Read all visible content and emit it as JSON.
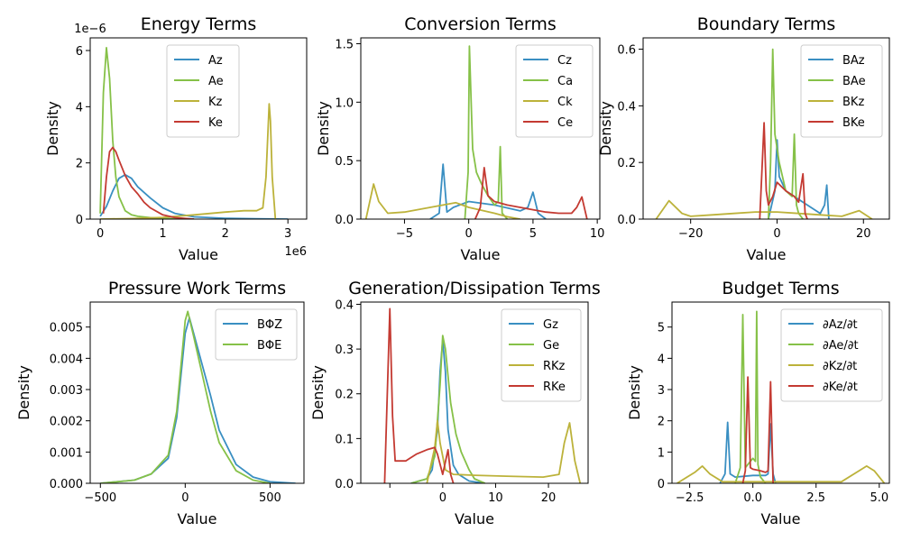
{
  "colors": {
    "blue": "#3a8fc2",
    "green": "#86c148",
    "gold": "#bcb23a",
    "red": "#c43a32"
  },
  "chart_data": [
    {
      "type": "line",
      "title": "Energy Terms",
      "xlabel": "Value",
      "ylabel": "Density",
      "xlim": [
        -0.16,
        3.3
      ],
      "ylim": [
        0,
        6.45
      ],
      "xticks": [
        0,
        1,
        2,
        3
      ],
      "xtick_labels": [
        "0",
        "1",
        "2",
        "3"
      ],
      "yticks": [
        0,
        2,
        4,
        6
      ],
      "ytick_labels": [
        "0",
        "2",
        "4",
        "6"
      ],
      "x_offset_text": "1e6",
      "y_offset_text": "1e−6",
      "legend_position": "top-center",
      "series": [
        {
          "name": "Az",
          "color": "#3a8fc2",
          "x": [
            0,
            0.1,
            0.2,
            0.3,
            0.4,
            0.5,
            0.6,
            0.7,
            0.8,
            1.0,
            1.2,
            1.5,
            2.0,
            2.5,
            3.0
          ],
          "y": [
            0.1,
            0.45,
            1.0,
            1.45,
            1.58,
            1.45,
            1.15,
            0.95,
            0.75,
            0.4,
            0.2,
            0.08,
            0.03,
            0.01,
            0
          ]
        },
        {
          "name": "Ae",
          "color": "#86c148",
          "x": [
            0,
            0.05,
            0.1,
            0.15,
            0.2,
            0.25,
            0.3,
            0.4,
            0.5,
            0.6,
            0.8,
            1.0,
            1.5
          ],
          "y": [
            0.2,
            4.5,
            6.1,
            5.0,
            2.8,
            1.5,
            0.8,
            0.3,
            0.15,
            0.1,
            0.05,
            0.02,
            0
          ]
        },
        {
          "name": "Kz",
          "color": "#bcb23a",
          "x": [
            0,
            0.5,
            1.0,
            1.5,
            2.0,
            2.3,
            2.5,
            2.6,
            2.65,
            2.7,
            2.72,
            2.75,
            2.8
          ],
          "y": [
            0,
            0.02,
            0.06,
            0.15,
            0.25,
            0.3,
            0.3,
            0.4,
            1.5,
            4.1,
            3.5,
            1.5,
            0
          ]
        },
        {
          "name": "Ke",
          "color": "#c43a32",
          "x": [
            0.05,
            0.1,
            0.15,
            0.2,
            0.25,
            0.3,
            0.4,
            0.5,
            0.6,
            0.7,
            0.8,
            1.0,
            1.2,
            1.5
          ],
          "y": [
            0.2,
            1.5,
            2.4,
            2.55,
            2.4,
            2.1,
            1.55,
            1.15,
            0.9,
            0.6,
            0.4,
            0.15,
            0.05,
            0
          ]
        }
      ]
    },
    {
      "type": "line",
      "title": "Conversion Terms",
      "xlabel": "Value",
      "ylabel": "Density",
      "xlim": [
        -8.4,
        10.2
      ],
      "ylim": [
        0,
        1.55
      ],
      "xticks": [
        -5,
        0,
        5,
        10
      ],
      "xtick_labels": [
        "−5",
        "0",
        "5",
        "10"
      ],
      "yticks": [
        0,
        0.5,
        1.0,
        1.5
      ],
      "ytick_labels": [
        "0.0",
        "0.5",
        "1.0",
        "1.5"
      ],
      "legend_position": "top-right",
      "series": [
        {
          "name": "Cz",
          "color": "#3a8fc2",
          "x": [
            -3,
            -2.3,
            -2.0,
            -1.7,
            -1.2,
            0,
            2,
            4,
            4.6,
            5.0,
            5.4,
            6
          ],
          "y": [
            0,
            0.05,
            0.47,
            0.06,
            0.1,
            0.15,
            0.12,
            0.07,
            0.1,
            0.23,
            0.05,
            0
          ]
        },
        {
          "name": "Ca",
          "color": "#86c148",
          "x": [
            -0.3,
            -0.05,
            0.05,
            0.3,
            0.6,
            1.0,
            1.5,
            2.0,
            2.3,
            2.45,
            2.6,
            3.0
          ],
          "y": [
            0,
            0.4,
            1.48,
            0.6,
            0.4,
            0.3,
            0.2,
            0.12,
            0.15,
            0.62,
            0.05,
            0
          ]
        },
        {
          "name": "Ck",
          "color": "#bcb23a",
          "x": [
            -8,
            -7.4,
            -7.0,
            -6.3,
            -5,
            -3,
            -1,
            0,
            2,
            3,
            4
          ],
          "y": [
            0,
            0.3,
            0.15,
            0.05,
            0.06,
            0.1,
            0.14,
            0.1,
            0.05,
            0.02,
            0
          ]
        },
        {
          "name": "Ce",
          "color": "#c43a32",
          "x": [
            0.5,
            0.9,
            1.2,
            1.5,
            2,
            3,
            4,
            5,
            6,
            7,
            8,
            8.4,
            8.8,
            9.2
          ],
          "y": [
            0,
            0.1,
            0.44,
            0.2,
            0.15,
            0.12,
            0.1,
            0.08,
            0.06,
            0.05,
            0.05,
            0.1,
            0.19,
            0
          ]
        }
      ]
    },
    {
      "type": "line",
      "title": "Boundary Terms",
      "xlabel": "Value",
      "ylabel": "Density",
      "xlim": [
        -31,
        26
      ],
      "ylim": [
        0,
        0.64
      ],
      "xticks": [
        -20,
        0,
        20
      ],
      "xtick_labels": [
        "−20",
        "0",
        "20"
      ],
      "yticks": [
        0,
        0.2,
        0.4,
        0.6
      ],
      "ytick_labels": [
        "0.0",
        "0.2",
        "0.4",
        "0.6"
      ],
      "legend_position": "top-right",
      "series": [
        {
          "name": "BAz",
          "color": "#3a8fc2",
          "x": [
            -2,
            -0.5,
            0,
            0.5,
            2,
            6,
            9,
            10,
            11,
            11.5,
            12
          ],
          "y": [
            0,
            0.1,
            0.28,
            0.15,
            0.1,
            0.06,
            0.03,
            0.02,
            0.05,
            0.12,
            0
          ]
        },
        {
          "name": "BAe",
          "color": "#86c148",
          "x": [
            -2,
            -1.5,
            -1,
            -0.5,
            0.5,
            2,
            3.5,
            4,
            4.5,
            5,
            6
          ],
          "y": [
            0,
            0.2,
            0.6,
            0.3,
            0.2,
            0.1,
            0.08,
            0.3,
            0.05,
            0.02,
            0
          ]
        },
        {
          "name": "BKz",
          "color": "#bcb23a",
          "x": [
            -28,
            -25,
            -22,
            -20,
            -15,
            -10,
            -5,
            0,
            5,
            10,
            15,
            19,
            22
          ],
          "y": [
            0,
            0.065,
            0.02,
            0.01,
            0.015,
            0.02,
            0.025,
            0.025,
            0.02,
            0.015,
            0.01,
            0.03,
            0
          ]
        },
        {
          "name": "BKe",
          "color": "#c43a32",
          "x": [
            -4,
            -3,
            -2.5,
            -2,
            -1,
            0,
            2,
            4,
            5,
            6,
            6.5,
            7
          ],
          "y": [
            0,
            0.34,
            0.1,
            0.05,
            0.08,
            0.13,
            0.1,
            0.08,
            0.06,
            0.16,
            0.02,
            0
          ]
        }
      ]
    },
    {
      "type": "line",
      "title": "Pressure Work Terms",
      "xlabel": "Value",
      "ylabel": "Density",
      "xlim": [
        -560,
        700
      ],
      "ylim": [
        0,
        0.0058
      ],
      "xticks": [
        -500,
        0,
        500
      ],
      "xtick_labels": [
        "−500",
        "0",
        "500"
      ],
      "yticks": [
        0,
        0.001,
        0.002,
        0.003,
        0.004,
        0.005
      ],
      "ytick_labels": [
        "0.000",
        "0.001",
        "0.002",
        "0.003",
        "0.004",
        "0.005"
      ],
      "legend_position": "top-right",
      "series": [
        {
          "name": "BΦZ",
          "color": "#3a8fc2",
          "x": [
            -500,
            -300,
            -200,
            -100,
            -50,
            0,
            25,
            50,
            100,
            150,
            200,
            300,
            400,
            500,
            650
          ],
          "y": [
            0,
            0.0001,
            0.0003,
            0.0008,
            0.0021,
            0.0048,
            0.0053,
            0.0048,
            0.0038,
            0.0028,
            0.0017,
            0.0006,
            0.0002,
            5e-05,
            0
          ]
        },
        {
          "name": "BΦE",
          "color": "#86c148",
          "x": [
            -500,
            -300,
            -200,
            -100,
            -50,
            0,
            15,
            50,
            100,
            150,
            200,
            300,
            400,
            500
          ],
          "y": [
            0,
            0.0001,
            0.0003,
            0.0009,
            0.0023,
            0.0052,
            0.0055,
            0.0047,
            0.0035,
            0.0023,
            0.0013,
            0.0004,
            0.0001,
            0
          ]
        }
      ]
    },
    {
      "type": "line",
      "title": "Generation/Dissipation Terms",
      "xlabel": "Value",
      "ylabel": "Density",
      "xlim": [
        -15.5,
        27.5
      ],
      "ylim": [
        0,
        0.405
      ],
      "xticks": [
        -10,
        0,
        10,
        20
      ],
      "xtick_labels": [
        "",
        "0",
        "10",
        "20"
      ],
      "yticks": [
        0,
        0.1,
        0.2,
        0.3,
        0.4
      ],
      "ytick_labels": [
        "0.0",
        "0.1",
        "0.2",
        "0.3",
        "0.4"
      ],
      "legend_position": "top-right",
      "series": [
        {
          "name": "Gz",
          "color": "#3a8fc2",
          "x": [
            -6,
            -3,
            -2,
            -1,
            -0.5,
            0,
            0.5,
            1,
            2,
            3,
            5,
            8
          ],
          "y": [
            0,
            0.01,
            0.03,
            0.12,
            0.25,
            0.32,
            0.25,
            0.12,
            0.04,
            0.02,
            0.005,
            0
          ]
        },
        {
          "name": "Ge",
          "color": "#86c148",
          "x": [
            -6,
            -3,
            -1.5,
            -0.5,
            0,
            0.5,
            1.5,
            2.5,
            3.5,
            5,
            6,
            8
          ],
          "y": [
            0,
            0.01,
            0.06,
            0.22,
            0.33,
            0.3,
            0.18,
            0.11,
            0.07,
            0.03,
            0.01,
            0
          ]
        },
        {
          "name": "RKz",
          "color": "#bcb23a",
          "x": [
            -3,
            -1.5,
            -1,
            -0.5,
            0.5,
            2,
            6,
            12,
            19,
            22,
            23,
            24,
            25,
            26
          ],
          "y": [
            0,
            0.08,
            0.14,
            0.09,
            0.03,
            0.02,
            0.018,
            0.016,
            0.014,
            0.02,
            0.09,
            0.135,
            0.05,
            0
          ]
        },
        {
          "name": "RKe",
          "color": "#c43a32",
          "x": [
            -11,
            -10,
            -9.5,
            -9,
            -8.5,
            -7,
            -5,
            -3,
            -1.5,
            -1,
            0,
            1,
            1.5,
            2
          ],
          "y": [
            0,
            0.39,
            0.15,
            0.05,
            0.05,
            0.05,
            0.065,
            0.075,
            0.08,
            0.065,
            0.02,
            0.075,
            0.02,
            0
          ]
        }
      ]
    },
    {
      "type": "line",
      "title": "Budget Terms",
      "xlabel": "Value",
      "ylabel": "Density",
      "xlim": [
        -3.2,
        5.4
      ],
      "ylim": [
        0,
        5.8
      ],
      "xticks": [
        -2.5,
        0,
        2.5,
        5.0
      ],
      "xtick_labels": [
        "−2.5",
        "0.0",
        "2.5",
        "5.0"
      ],
      "yticks": [
        0,
        1,
        2,
        3,
        4,
        5
      ],
      "ytick_labels": [
        "0",
        "1",
        "2",
        "3",
        "4",
        "5"
      ],
      "legend_position": "top-right",
      "series": [
        {
          "name": "∂Az/∂t",
          "color": "#3a8fc2",
          "x": [
            -1.3,
            -1.1,
            -1.0,
            -0.9,
            -0.7,
            0,
            0.5,
            0.6,
            0.7,
            0.8,
            0.9
          ],
          "y": [
            0,
            0.3,
            1.95,
            0.3,
            0.2,
            0.25,
            0.25,
            0.3,
            1.9,
            0.3,
            0
          ]
        },
        {
          "name": "∂Ae/∂t",
          "color": "#86c148",
          "x": [
            -0.7,
            -0.5,
            -0.4,
            -0.3,
            -0.1,
            0,
            0.1,
            0.15,
            0.2,
            0.3,
            0.5
          ],
          "y": [
            0,
            0.5,
            5.4,
            0.5,
            0.7,
            0.8,
            0.7,
            5.5,
            0.6,
            0.2,
            0
          ]
        },
        {
          "name": "∂Kz/∂t",
          "color": "#bcb23a",
          "x": [
            -3,
            -2.3,
            -2.0,
            -1.7,
            -1.2,
            0,
            2,
            3.5,
            4.2,
            4.5,
            4.8,
            5.2
          ],
          "y": [
            0,
            0.35,
            0.55,
            0.3,
            0.05,
            0.05,
            0.05,
            0.05,
            0.4,
            0.55,
            0.4,
            0
          ]
        },
        {
          "name": "∂Ke/∂t",
          "color": "#c43a32",
          "x": [
            -0.4,
            -0.3,
            -0.2,
            -0.1,
            0,
            0.3,
            0.5,
            0.6,
            0.7,
            0.8
          ],
          "y": [
            0,
            0.4,
            3.4,
            0.5,
            0.45,
            0.4,
            0.35,
            0.4,
            3.25,
            0
          ]
        }
      ]
    }
  ]
}
